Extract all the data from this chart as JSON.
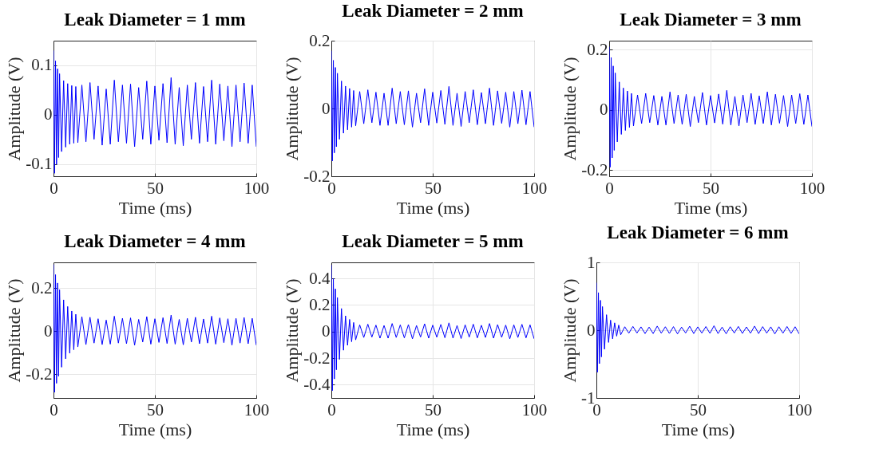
{
  "chart_data": [
    {
      "type": "line",
      "title": "Leak Diameter = 1 mm",
      "xlabel": "Time (ms)",
      "ylabel": "Amplitude (V)",
      "xlim": [
        0,
        100
      ],
      "xticks": [
        0,
        50,
        100
      ],
      "ylim": [
        -0.125,
        0.15
      ],
      "yticks": [
        -0.1,
        0,
        0.1
      ],
      "grid": true,
      "x": [
        0,
        0.5,
        1,
        1.5,
        2,
        2.5,
        3,
        4,
        5,
        6,
        7,
        8,
        9,
        10,
        11,
        12,
        14,
        16,
        18,
        20,
        22,
        24,
        26,
        28,
        30,
        32,
        34,
        36,
        38,
        40,
        42,
        44,
        46,
        48,
        50,
        52,
        54,
        56,
        58,
        60,
        62,
        64,
        66,
        68,
        70,
        72,
        74,
        76,
        78,
        80,
        82,
        84,
        86,
        88,
        90,
        92,
        94,
        96,
        98,
        100
      ],
      "series": [
        {
          "color": "#0000ff",
          "values": [
            0.13,
            -0.119,
            0.109,
            -0.101,
            0.093,
            -0.087,
            0.083,
            -0.075,
            0.069,
            -0.066,
            0.063,
            -0.06,
            0.059,
            -0.058,
            0.057,
            -0.057,
            0.06,
            -0.055,
            0.065,
            -0.05,
            0.058,
            -0.062,
            0.052,
            -0.06,
            0.07,
            -0.055,
            0.06,
            -0.058,
            0.062,
            -0.065,
            0.055,
            -0.05,
            0.068,
            -0.06,
            0.058,
            -0.052,
            0.063,
            -0.057,
            0.075,
            -0.06,
            0.055,
            -0.063,
            0.06,
            -0.05,
            0.065,
            -0.058,
            0.057,
            -0.055,
            0.07,
            -0.06,
            0.062,
            -0.053,
            0.058,
            -0.065,
            0.06,
            -0.055,
            0.064,
            -0.058,
            0.06,
            -0.065
          ]
        }
      ]
    },
    {
      "type": "line",
      "title": "Leak Diameter = 2 mm",
      "xlabel": "Time (ms)",
      "ylabel": "Amplitude (V)",
      "xlim": [
        0,
        100
      ],
      "xticks": [
        0,
        50,
        100
      ],
      "ylim": [
        -0.2,
        0.2
      ],
      "yticks": [
        -0.2,
        0,
        0.2
      ],
      "grid": true,
      "x": [
        0,
        0.5,
        1,
        1.5,
        2,
        2.5,
        3,
        4,
        5,
        6,
        7,
        8,
        9,
        10,
        11,
        12,
        14,
        16,
        18,
        20,
        22,
        24,
        26,
        28,
        30,
        32,
        34,
        36,
        38,
        40,
        42,
        44,
        46,
        48,
        50,
        52,
        54,
        56,
        58,
        60,
        62,
        64,
        66,
        68,
        70,
        72,
        74,
        76,
        78,
        80,
        82,
        84,
        86,
        88,
        90,
        92,
        94,
        96,
        98,
        100
      ],
      "series": [
        {
          "color": "#0000ff",
          "values": [
            0.17,
            -0.155,
            0.142,
            -0.131,
            0.121,
            -0.113,
            0.104,
            -0.091,
            0.081,
            -0.073,
            0.066,
            -0.063,
            0.059,
            -0.055,
            0.053,
            -0.051,
            0.05,
            -0.045,
            0.055,
            -0.042,
            0.048,
            -0.05,
            0.045,
            -0.05,
            0.06,
            -0.045,
            0.05,
            -0.048,
            0.052,
            -0.055,
            0.045,
            -0.042,
            0.058,
            -0.05,
            0.048,
            -0.043,
            0.053,
            -0.047,
            0.065,
            -0.05,
            0.045,
            -0.053,
            0.05,
            -0.042,
            0.055,
            -0.048,
            0.047,
            -0.045,
            0.06,
            -0.05,
            0.052,
            -0.044,
            0.048,
            -0.055,
            0.05,
            -0.045,
            0.054,
            -0.048,
            0.05,
            -0.055
          ]
        }
      ]
    },
    {
      "type": "line",
      "title": "Leak Diameter = 3 mm",
      "xlabel": "Time (ms)",
      "ylabel": "Amplitude (V)",
      "xlim": [
        0,
        100
      ],
      "xticks": [
        0,
        50,
        100
      ],
      "ylim": [
        -0.22,
        0.23
      ],
      "yticks": [
        -0.2,
        0,
        0.2
      ],
      "grid": true,
      "x": [
        0,
        0.5,
        1,
        1.5,
        2,
        2.5,
        3,
        4,
        5,
        6,
        7,
        8,
        9,
        10,
        11,
        12,
        14,
        16,
        18,
        20,
        22,
        24,
        26,
        28,
        30,
        32,
        34,
        36,
        38,
        40,
        42,
        44,
        46,
        48,
        50,
        52,
        54,
        56,
        58,
        60,
        62,
        64,
        66,
        68,
        70,
        72,
        74,
        76,
        78,
        80,
        82,
        84,
        86,
        88,
        90,
        92,
        94,
        96,
        98,
        100
      ],
      "series": [
        {
          "color": "#0000ff",
          "values": [
            0.21,
            -0.19,
            0.174,
            -0.159,
            0.146,
            -0.134,
            0.123,
            -0.106,
            0.093,
            -0.081,
            0.073,
            -0.068,
            0.063,
            -0.058,
            0.055,
            -0.053,
            0.05,
            -0.045,
            0.055,
            -0.042,
            0.048,
            -0.05,
            0.045,
            -0.05,
            0.06,
            -0.045,
            0.05,
            -0.048,
            0.052,
            -0.055,
            0.045,
            -0.042,
            0.058,
            -0.05,
            0.048,
            -0.043,
            0.053,
            -0.047,
            0.065,
            -0.05,
            0.045,
            -0.053,
            0.05,
            -0.042,
            0.055,
            -0.048,
            0.047,
            -0.045,
            0.06,
            -0.05,
            0.052,
            -0.044,
            0.048,
            -0.055,
            0.05,
            -0.045,
            0.054,
            -0.048,
            0.05,
            -0.055
          ]
        }
      ]
    },
    {
      "type": "line",
      "title": "Leak Diameter = 4 mm",
      "xlabel": "Time (ms)",
      "ylabel": "Amplitude (V)",
      "xlim": [
        0,
        100
      ],
      "xticks": [
        0,
        50,
        100
      ],
      "ylim": [
        -0.31,
        0.32
      ],
      "yticks": [
        -0.2,
        0,
        0.2
      ],
      "grid": true,
      "x": [
        0,
        0.5,
        1,
        1.5,
        2,
        2.5,
        3,
        4,
        5,
        6,
        7,
        8,
        9,
        10,
        11,
        12,
        14,
        16,
        18,
        20,
        22,
        24,
        26,
        28,
        30,
        32,
        34,
        36,
        38,
        40,
        42,
        44,
        46,
        48,
        50,
        52,
        54,
        56,
        58,
        60,
        62,
        64,
        66,
        68,
        70,
        72,
        74,
        76,
        78,
        80,
        82,
        84,
        86,
        88,
        90,
        92,
        94,
        96,
        98,
        100
      ],
      "series": [
        {
          "color": "#0000ff",
          "values": [
            0.31,
            -0.284,
            0.263,
            -0.242,
            0.224,
            -0.209,
            0.193,
            -0.167,
            0.146,
            -0.128,
            0.115,
            -0.102,
            0.094,
            -0.086,
            0.079,
            -0.073,
            0.068,
            -0.062,
            0.065,
            -0.055,
            0.058,
            -0.062,
            0.052,
            -0.06,
            0.07,
            -0.055,
            0.06,
            -0.058,
            0.062,
            -0.065,
            0.055,
            -0.05,
            0.068,
            -0.06,
            0.058,
            -0.052,
            0.063,
            -0.057,
            0.075,
            -0.06,
            0.055,
            -0.063,
            0.06,
            -0.05,
            0.065,
            -0.058,
            0.057,
            -0.055,
            0.07,
            -0.06,
            0.062,
            -0.053,
            0.058,
            -0.065,
            0.06,
            -0.055,
            0.064,
            -0.058,
            0.06,
            -0.065
          ]
        }
      ]
    },
    {
      "type": "line",
      "title": "Leak Diameter = 5 mm",
      "xlabel": "Time (ms)",
      "ylabel": "Amplitude (V)",
      "xlim": [
        0,
        100
      ],
      "xticks": [
        0,
        50,
        100
      ],
      "ylim": [
        -0.5,
        0.52
      ],
      "yticks": [
        -0.4,
        -0.2,
        0,
        0.2,
        0.4
      ],
      "grid": true,
      "x": [
        0,
        0.5,
        1,
        1.5,
        2,
        2.5,
        3,
        4,
        5,
        6,
        7,
        8,
        9,
        10,
        11,
        12,
        14,
        16,
        18,
        20,
        22,
        24,
        26,
        28,
        30,
        32,
        34,
        36,
        38,
        40,
        42,
        44,
        46,
        48,
        50,
        52,
        54,
        56,
        58,
        60,
        62,
        64,
        66,
        68,
        70,
        72,
        74,
        76,
        78,
        80,
        82,
        84,
        86,
        88,
        90,
        92,
        94,
        96,
        98,
        100
      ],
      "series": [
        {
          "color": "#0000ff",
          "values": [
            0.5,
            -0.445,
            0.399,
            -0.357,
            0.321,
            -0.288,
            0.256,
            -0.21,
            0.173,
            -0.141,
            0.118,
            -0.104,
            0.091,
            -0.077,
            0.068,
            -0.063,
            0.05,
            -0.045,
            0.055,
            -0.042,
            0.048,
            -0.05,
            0.045,
            -0.05,
            0.06,
            -0.045,
            0.05,
            -0.048,
            0.052,
            -0.055,
            0.045,
            -0.042,
            0.058,
            -0.05,
            0.048,
            -0.043,
            0.053,
            -0.047,
            0.065,
            -0.05,
            0.045,
            -0.053,
            0.05,
            -0.042,
            0.055,
            -0.048,
            0.047,
            -0.045,
            0.06,
            -0.05,
            0.052,
            -0.044,
            0.048,
            -0.055,
            0.05,
            -0.045,
            0.054,
            -0.048,
            0.05,
            -0.055
          ]
        }
      ]
    },
    {
      "type": "line",
      "title": "Leak Diameter = 6 mm",
      "xlabel": "Time (ms)",
      "ylabel": "Amplitude (V)",
      "xlim": [
        0,
        100
      ],
      "xticks": [
        0,
        50,
        100
      ],
      "ylim": [
        -1,
        1
      ],
      "yticks": [
        -1,
        0,
        1
      ],
      "grid": true,
      "x": [
        0,
        0.5,
        1,
        1.5,
        2,
        2.5,
        3,
        4,
        5,
        6,
        7,
        8,
        9,
        10,
        11,
        12,
        14,
        16,
        18,
        20,
        22,
        24,
        26,
        28,
        30,
        32,
        34,
        36,
        38,
        40,
        42,
        44,
        46,
        48,
        50,
        52,
        54,
        56,
        58,
        60,
        62,
        64,
        66,
        68,
        70,
        72,
        74,
        76,
        78,
        80,
        82,
        84,
        86,
        88,
        90,
        92,
        94,
        96,
        98,
        100
      ],
      "series": [
        {
          "color": "#0000ff",
          "values": [
            0.7,
            -0.62,
            0.554,
            -0.494,
            0.441,
            -0.394,
            0.348,
            -0.281,
            0.228,
            -0.181,
            0.148,
            -0.128,
            0.108,
            -0.088,
            0.075,
            -0.068,
            0.05,
            -0.045,
            0.055,
            -0.042,
            0.048,
            -0.05,
            0.045,
            -0.05,
            0.06,
            -0.045,
            0.05,
            -0.048,
            0.052,
            -0.055,
            0.045,
            -0.042,
            0.058,
            -0.05,
            0.048,
            -0.043,
            0.053,
            -0.047,
            0.065,
            -0.05,
            0.045,
            -0.053,
            0.05,
            -0.042,
            0.055,
            -0.048,
            0.047,
            -0.045,
            0.06,
            -0.05,
            0.052,
            -0.044,
            0.048,
            -0.055,
            0.05,
            -0.045,
            0.054,
            -0.048,
            0.05,
            -0.055
          ]
        }
      ]
    }
  ]
}
